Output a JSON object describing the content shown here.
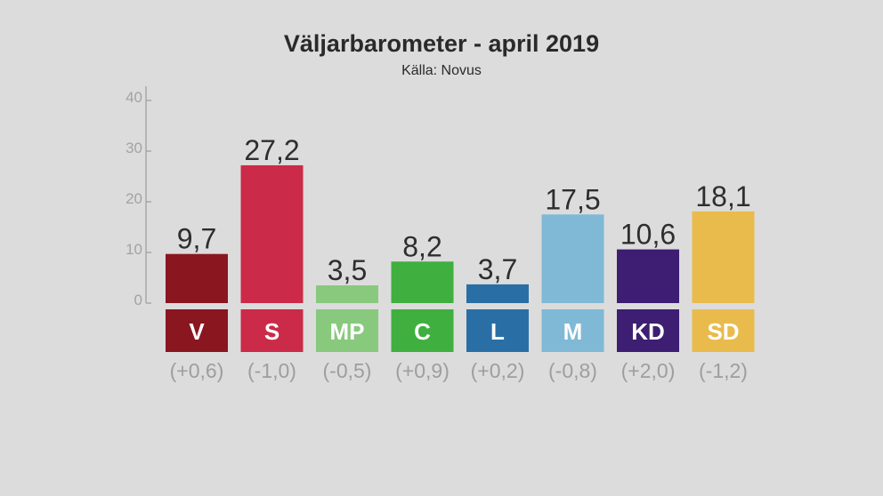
{
  "title": "Väljarbarometer - april 2019",
  "subtitle": "Källa: Novus",
  "chart_data": {
    "type": "bar",
    "title": "Väljarbarometer - april 2019",
    "subtitle": "Källa: Novus",
    "categories": [
      "V",
      "S",
      "MP",
      "C",
      "L",
      "M",
      "KD",
      "SD"
    ],
    "values": [
      9.7,
      27.2,
      3.5,
      8.2,
      3.7,
      17.5,
      10.6,
      18.1
    ],
    "value_labels": [
      "9,7",
      "27,2",
      "3,5",
      "8,2",
      "3,7",
      "17,5",
      "10,6",
      "18,1"
    ],
    "changes": [
      "(+0,6)",
      "(-1,0)",
      "(-0,5)",
      "(+0,9)",
      "(+0,2)",
      "(-0,8)",
      "(+2,0)",
      "(-1,2)"
    ],
    "colors": [
      "#8a1620",
      "#cb2a48",
      "#88c97d",
      "#3faf3f",
      "#2a6ea6",
      "#80b9d6",
      "#3d1e72",
      "#e9bb4c"
    ],
    "ylim": [
      0,
      40
    ],
    "yticks": [
      0,
      10,
      20,
      30,
      40
    ],
    "ytick_labels": [
      "0",
      "10",
      "20",
      "30",
      "40"
    ],
    "xlabel": "",
    "ylabel": "",
    "grid": false,
    "legend": "none"
  }
}
